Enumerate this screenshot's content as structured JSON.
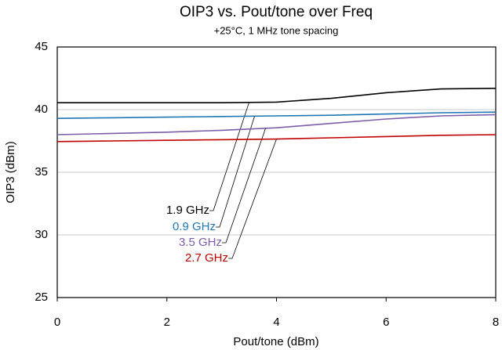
{
  "chart_data": {
    "type": "line",
    "title": "OIP3 vs. Pout/tone over Freq",
    "subtitle": "+25°C, 1 MHz tone spacing",
    "x_label": "Pout/tone (dBm)",
    "y_label": "OIP3 (dBm)",
    "x": [
      0,
      1,
      2,
      3,
      4,
      5,
      6,
      7,
      8
    ],
    "series": [
      {
        "name": "1.9 GHz",
        "color": "#000000",
        "values": [
          40.55,
          40.55,
          40.55,
          40.55,
          40.6,
          40.9,
          41.35,
          41.65,
          41.7
        ]
      },
      {
        "name": "0.9 GHz",
        "color": "#1f77b4",
        "values": [
          39.3,
          39.35,
          39.4,
          39.45,
          39.5,
          39.55,
          39.65,
          39.75,
          39.8
        ]
      },
      {
        "name": "3.5 GHz",
        "color": "#7b5ea7",
        "values": [
          38.0,
          38.1,
          38.2,
          38.35,
          38.55,
          38.9,
          39.25,
          39.5,
          39.6
        ]
      },
      {
        "name": "2.7 GHz",
        "color": "#c00000",
        "values": [
          37.45,
          37.5,
          37.55,
          37.6,
          37.65,
          37.75,
          37.85,
          37.95,
          38.0
        ]
      }
    ],
    "xlim": [
      0,
      8
    ],
    "xticks": [
      0,
      2,
      4,
      6,
      8
    ],
    "ylim": [
      25,
      45
    ],
    "yticks": [
      25,
      30,
      35,
      40,
      45
    ],
    "grid": true
  }
}
